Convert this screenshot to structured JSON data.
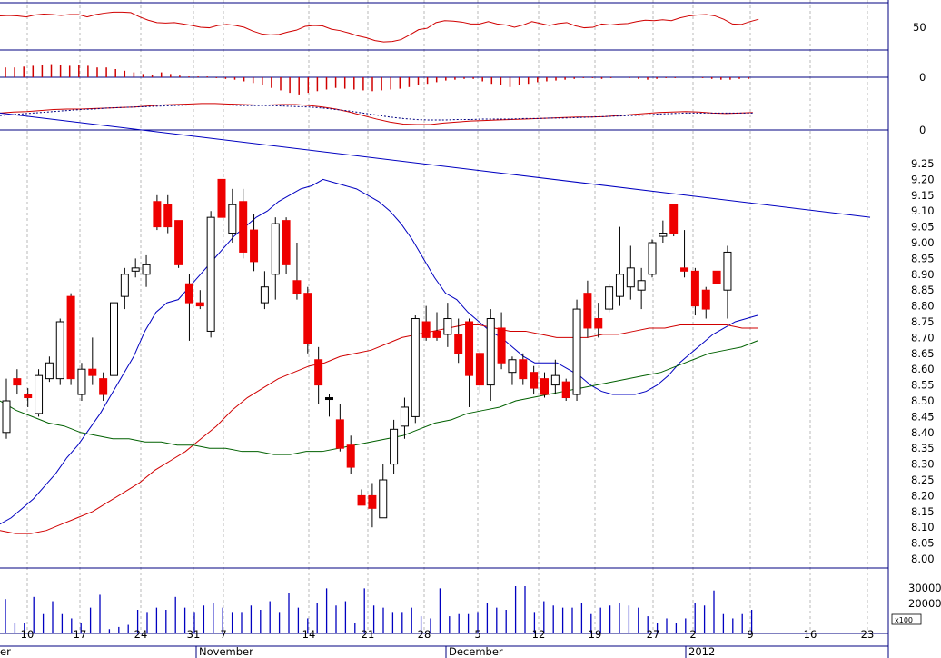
{
  "chart_data": [
    {
      "panel": "rsi",
      "type": "line",
      "y_ticks": [
        "50"
      ],
      "ylim": [
        0,
        100
      ],
      "reference_level": 50,
      "color": "#d00000",
      "values": [
        72,
        73,
        72,
        70,
        74,
        76,
        75,
        73,
        75,
        75,
        70,
        75,
        78,
        80,
        80,
        79,
        70,
        63,
        58,
        57,
        58,
        55,
        52,
        48,
        47,
        52,
        54,
        52,
        48,
        40,
        34,
        32,
        33,
        38,
        42,
        50,
        52,
        51,
        44,
        41,
        36,
        30,
        26,
        20,
        17,
        18,
        22,
        32,
        43,
        46,
        58,
        62,
        61,
        59,
        55,
        55,
        60,
        55,
        53,
        48,
        53,
        60,
        56,
        52,
        56,
        58,
        51,
        47,
        48,
        55,
        53,
        55,
        56,
        60,
        63,
        62,
        64,
        62,
        68,
        72,
        74,
        75,
        72,
        65,
        55,
        54,
        60,
        65
      ]
    },
    {
      "panel": "macd_histogram",
      "type": "bar",
      "y_ticks": [
        "0"
      ],
      "color": "#d00000",
      "values": [
        0.12,
        0.12,
        0.13,
        0.14,
        0.15,
        0.16,
        0.15,
        0.14,
        0.15,
        0.14,
        0.12,
        0.12,
        0.1,
        0.08,
        0.06,
        0.04,
        0.03,
        0.06,
        0.04,
        0.02,
        0.01,
        0.01,
        0.01,
        -0.01,
        -0.02,
        -0.03,
        -0.05,
        -0.07,
        -0.1,
        -0.13,
        -0.16,
        -0.19,
        -0.21,
        -0.19,
        -0.17,
        -0.15,
        -0.13,
        -0.14,
        -0.15,
        -0.16,
        -0.17,
        -0.16,
        -0.15,
        -0.14,
        -0.12,
        -0.1,
        -0.08,
        -0.06,
        -0.04,
        -0.03,
        -0.02,
        -0.02,
        -0.05,
        -0.08,
        -0.1,
        -0.12,
        -0.1,
        -0.08,
        -0.06,
        -0.05,
        -0.04,
        -0.03,
        -0.02,
        -0.01,
        -0.01,
        -0.02,
        -0.01,
        0.0,
        -0.01,
        -0.02,
        -0.03,
        -0.02,
        -0.01,
        -0.01,
        0.0,
        0.0,
        -0.01,
        -0.02,
        -0.03,
        -0.03,
        -0.02,
        -0.02
      ]
    },
    {
      "panel": "macd",
      "type": "line",
      "y_ticks": [
        "0"
      ],
      "series": [
        {
          "color": "#d00000",
          "values": [
            0.1,
            0.12,
            0.13,
            0.15,
            0.17,
            0.18,
            0.18,
            0.19,
            0.2,
            0.21,
            0.22,
            0.24,
            0.26,
            0.27,
            0.28,
            0.29,
            0.29,
            0.28,
            0.27,
            0.26,
            0.26,
            0.27,
            0.27,
            0.25,
            0.22,
            0.18,
            0.12,
            0.05,
            -0.02,
            -0.08,
            -0.12,
            -0.13,
            -0.13,
            -0.1,
            -0.08,
            -0.06,
            -0.05,
            -0.04,
            -0.03,
            -0.02,
            -0.01,
            0.0,
            0.01,
            0.02,
            0.02,
            0.03,
            0.05,
            0.07,
            0.09,
            0.11,
            0.12,
            0.13,
            0.12,
            0.1,
            0.09,
            0.1,
            0.11
          ]
        },
        {
          "color": "#000080",
          "dashed": true,
          "values": [
            0.05,
            0.07,
            0.09,
            0.11,
            0.13,
            0.15,
            0.17,
            0.18,
            0.2,
            0.21,
            0.22,
            0.23,
            0.24,
            0.25,
            0.26,
            0.26,
            0.26,
            0.26,
            0.25,
            0.25,
            0.25,
            0.24,
            0.23,
            0.22,
            0.2,
            0.17,
            0.14,
            0.1,
            0.06,
            0.02,
            -0.01,
            -0.03,
            -0.04,
            -0.04,
            -0.03,
            -0.03,
            -0.02,
            -0.02,
            -0.02,
            -0.01,
            -0.01,
            0.0,
            0.0,
            0.01,
            0.02,
            0.03,
            0.04,
            0.05,
            0.06,
            0.08,
            0.09,
            0.1,
            0.1,
            0.1,
            0.1,
            0.1,
            0.1
          ]
        }
      ]
    },
    {
      "panel": "price",
      "type": "candlestick",
      "ylim": [
        8.0,
        9.25
      ],
      "y_ticks": [
        "9.25",
        "9.20",
        "9.15",
        "9.10",
        "9.05",
        "9.00",
        "8.95",
        "8.90",
        "8.85",
        "8.80",
        "8.75",
        "8.70",
        "8.65",
        "8.60",
        "8.55",
        "8.50",
        "8.45",
        "8.40",
        "8.35",
        "8.30",
        "8.25",
        "8.20",
        "8.15",
        "8.10",
        "8.05",
        "8.00"
      ],
      "candles": [
        {
          "o": 8.4,
          "h": 8.57,
          "l": 8.38,
          "c": 8.5,
          "up": true
        },
        {
          "o": 8.57,
          "h": 8.6,
          "l": 8.52,
          "c": 8.55,
          "up": false
        },
        {
          "o": 8.52,
          "h": 8.54,
          "l": 8.48,
          "c": 8.51,
          "up": false
        },
        {
          "o": 8.46,
          "h": 8.6,
          "l": 8.45,
          "c": 8.58,
          "up": true
        },
        {
          "o": 8.57,
          "h": 8.64,
          "l": 8.56,
          "c": 8.62,
          "up": true
        },
        {
          "o": 8.57,
          "h": 8.76,
          "l": 8.55,
          "c": 8.75,
          "up": true
        },
        {
          "o": 8.83,
          "h": 8.84,
          "l": 8.55,
          "c": 8.57,
          "up": false
        },
        {
          "o": 8.52,
          "h": 8.62,
          "l": 8.5,
          "c": 8.6,
          "up": true
        },
        {
          "o": 8.58,
          "h": 8.7,
          "l": 8.55,
          "c": 8.6,
          "up": false
        },
        {
          "o": 8.57,
          "h": 8.59,
          "l": 8.5,
          "c": 8.52,
          "up": false
        },
        {
          "o": 8.58,
          "h": 8.81,
          "l": 8.56,
          "c": 8.81,
          "up": true
        },
        {
          "o": 8.83,
          "h": 8.92,
          "l": 8.79,
          "c": 8.9,
          "up": true
        },
        {
          "o": 8.91,
          "h": 8.95,
          "l": 8.89,
          "c": 8.92,
          "up": true
        },
        {
          "o": 8.9,
          "h": 8.96,
          "l": 8.86,
          "c": 8.93,
          "up": true
        },
        {
          "o": 9.13,
          "h": 9.15,
          "l": 9.04,
          "c": 9.05,
          "up": false
        },
        {
          "o": 9.12,
          "h": 9.15,
          "l": 9.03,
          "c": 9.05,
          "up": false
        },
        {
          "o": 9.07,
          "h": 9.07,
          "l": 8.92,
          "c": 8.93,
          "up": false
        },
        {
          "o": 8.87,
          "h": 8.9,
          "l": 8.69,
          "c": 8.81,
          "up": false
        },
        {
          "o": 8.8,
          "h": 8.85,
          "l": 8.79,
          "c": 8.81,
          "up": false
        },
        {
          "o": 8.72,
          "h": 9.1,
          "l": 8.7,
          "c": 9.08,
          "up": true
        },
        {
          "o": 9.2,
          "h": 9.2,
          "l": 9.08,
          "c": 9.08,
          "up": false
        },
        {
          "o": 9.03,
          "h": 9.17,
          "l": 9.0,
          "c": 9.12,
          "up": true
        },
        {
          "o": 9.13,
          "h": 9.17,
          "l": 8.95,
          "c": 8.97,
          "up": false
        },
        {
          "o": 9.04,
          "h": 9.09,
          "l": 8.91,
          "c": 8.94,
          "up": false
        },
        {
          "o": 8.86,
          "h": 8.91,
          "l": 8.79,
          "c": 8.81,
          "up": true
        },
        {
          "o": 8.9,
          "h": 9.08,
          "l": 8.82,
          "c": 9.06,
          "up": true
        },
        {
          "o": 9.07,
          "h": 9.08,
          "l": 8.9,
          "c": 8.93,
          "up": false
        },
        {
          "o": 8.88,
          "h": 9.0,
          "l": 8.82,
          "c": 8.84,
          "up": false
        },
        {
          "o": 8.84,
          "h": 8.86,
          "l": 8.65,
          "c": 8.68,
          "up": false
        },
        {
          "o": 8.63,
          "h": 8.67,
          "l": 8.49,
          "c": 8.55,
          "up": false
        },
        {
          "o": 8.51,
          "h": 8.52,
          "l": 8.45,
          "c": 8.51,
          "up": false
        },
        {
          "o": 8.44,
          "h": 8.49,
          "l": 8.34,
          "c": 8.35,
          "up": false
        },
        {
          "o": 8.36,
          "h": 8.39,
          "l": 8.27,
          "c": 8.29,
          "up": false
        },
        {
          "o": 8.2,
          "h": 8.22,
          "l": 8.17,
          "c": 8.17,
          "up": false
        },
        {
          "o": 8.2,
          "h": 8.24,
          "l": 8.1,
          "c": 8.16,
          "up": false
        },
        {
          "o": 8.13,
          "h": 8.3,
          "l": 8.13,
          "c": 8.25,
          "up": true
        },
        {
          "o": 8.3,
          "h": 8.44,
          "l": 8.27,
          "c": 8.41,
          "up": true
        },
        {
          "o": 8.42,
          "h": 8.51,
          "l": 8.38,
          "c": 8.48,
          "up": true
        },
        {
          "o": 8.45,
          "h": 8.77,
          "l": 8.43,
          "c": 8.76,
          "up": true
        },
        {
          "o": 8.75,
          "h": 8.8,
          "l": 8.69,
          "c": 8.7,
          "up": false
        },
        {
          "o": 8.7,
          "h": 8.78,
          "l": 8.69,
          "c": 8.72,
          "up": false
        },
        {
          "o": 8.71,
          "h": 8.81,
          "l": 8.67,
          "c": 8.76,
          "up": true
        },
        {
          "o": 8.71,
          "h": 8.76,
          "l": 8.62,
          "c": 8.65,
          "up": false
        },
        {
          "o": 8.75,
          "h": 8.76,
          "l": 8.48,
          "c": 8.58,
          "up": false
        },
        {
          "o": 8.65,
          "h": 8.66,
          "l": 8.52,
          "c": 8.55,
          "up": false
        },
        {
          "o": 8.55,
          "h": 8.79,
          "l": 8.5,
          "c": 8.76,
          "up": true
        },
        {
          "o": 8.73,
          "h": 8.78,
          "l": 8.6,
          "c": 8.62,
          "up": false
        },
        {
          "o": 8.59,
          "h": 8.64,
          "l": 8.55,
          "c": 8.63,
          "up": true
        },
        {
          "o": 8.63,
          "h": 8.65,
          "l": 8.55,
          "c": 8.57,
          "up": false
        },
        {
          "o": 8.59,
          "h": 8.61,
          "l": 8.52,
          "c": 8.54,
          "up": false
        },
        {
          "o": 8.57,
          "h": 8.59,
          "l": 8.51,
          "c": 8.52,
          "up": false
        },
        {
          "o": 8.55,
          "h": 8.63,
          "l": 8.52,
          "c": 8.58,
          "up": true
        },
        {
          "o": 8.56,
          "h": 8.57,
          "l": 8.5,
          "c": 8.51,
          "up": false
        },
        {
          "o": 8.52,
          "h": 8.82,
          "l": 8.5,
          "c": 8.79,
          "up": true
        },
        {
          "o": 8.84,
          "h": 8.88,
          "l": 8.7,
          "c": 8.73,
          "up": false
        },
        {
          "o": 8.76,
          "h": 8.81,
          "l": 8.7,
          "c": 8.73,
          "up": false
        },
        {
          "o": 8.79,
          "h": 8.87,
          "l": 8.78,
          "c": 8.86,
          "up": true
        },
        {
          "o": 8.83,
          "h": 9.05,
          "l": 8.8,
          "c": 8.9,
          "up": true
        },
        {
          "o": 8.92,
          "h": 8.99,
          "l": 8.82,
          "c": 8.86,
          "up": true
        },
        {
          "o": 8.85,
          "h": 8.92,
          "l": 8.79,
          "c": 8.88,
          "up": true
        },
        {
          "o": 8.9,
          "h": 9.01,
          "l": 8.89,
          "c": 9.0,
          "up": true
        },
        {
          "o": 9.02,
          "h": 9.07,
          "l": 9.0,
          "c": 9.03,
          "up": true
        },
        {
          "o": 9.12,
          "h": 9.12,
          "l": 9.02,
          "c": 9.03,
          "up": false
        },
        {
          "o": 8.92,
          "h": 9.04,
          "l": 8.89,
          "c": 8.91,
          "up": false
        },
        {
          "o": 8.91,
          "h": 8.92,
          "l": 8.77,
          "c": 8.8,
          "up": false
        },
        {
          "o": 8.85,
          "h": 8.86,
          "l": 8.76,
          "c": 8.79,
          "up": false
        },
        {
          "o": 8.87,
          "h": 8.91,
          "l": 8.88,
          "c": 8.91,
          "up": false
        },
        {
          "o": 8.85,
          "h": 8.99,
          "l": 8.76,
          "c": 8.97,
          "up": true
        }
      ],
      "moving_averages": [
        {
          "color": "#0000c0",
          "values": [
            8.11,
            8.13,
            8.16,
            8.19,
            8.23,
            8.27,
            8.32,
            8.36,
            8.41,
            8.46,
            8.52,
            8.58,
            8.64,
            8.72,
            8.78,
            8.81,
            8.82,
            8.86,
            8.9,
            8.94,
            8.98,
            9.02,
            9.05,
            9.08,
            9.1,
            9.13,
            9.15,
            9.17,
            9.18,
            9.2,
            9.19,
            9.18,
            9.17,
            9.15,
            9.13,
            9.1,
            9.06,
            9.01,
            8.95,
            8.89,
            8.84,
            8.82,
            8.78,
            8.75,
            8.72,
            8.7,
            8.67,
            8.64,
            8.62,
            8.62,
            8.62,
            8.6,
            8.58,
            8.55,
            8.53,
            8.52,
            8.52,
            8.52,
            8.53,
            8.55,
            8.58,
            8.62,
            8.65,
            8.68,
            8.71,
            8.73,
            8.75,
            8.76,
            8.77
          ]
        },
        {
          "color": "#d00000",
          "values": [
            8.09,
            8.08,
            8.08,
            8.09,
            8.11,
            8.13,
            8.15,
            8.18,
            8.21,
            8.24,
            8.28,
            8.31,
            8.34,
            8.38,
            8.42,
            8.47,
            8.51,
            8.54,
            8.57,
            8.59,
            8.61,
            8.62,
            8.64,
            8.65,
            8.66,
            8.68,
            8.7,
            8.71,
            8.72,
            8.73,
            8.74,
            8.74,
            8.73,
            8.72,
            8.72,
            8.71,
            8.7,
            8.7,
            8.7,
            8.71,
            8.71,
            8.72,
            8.73,
            8.73,
            8.74,
            8.74,
            8.74,
            8.74,
            8.73,
            8.73
          ]
        },
        {
          "color": "#006000",
          "values": [
            8.5,
            8.47,
            8.45,
            8.43,
            8.42,
            8.4,
            8.39,
            8.38,
            8.38,
            8.37,
            8.37,
            8.36,
            8.36,
            8.35,
            8.35,
            8.34,
            8.34,
            8.33,
            8.33,
            8.34,
            8.34,
            8.35,
            8.36,
            8.37,
            8.38,
            8.39,
            8.41,
            8.43,
            8.44,
            8.46,
            8.47,
            8.48,
            8.5,
            8.51,
            8.52,
            8.53,
            8.54,
            8.55,
            8.56,
            8.57,
            8.58,
            8.59,
            8.61,
            8.63,
            8.65,
            8.66,
            8.67,
            8.69
          ]
        }
      ],
      "trendline": {
        "color": "#0000c0",
        "from": 9.41,
        "to": 9.08
      }
    },
    {
      "panel": "volume",
      "type": "bar",
      "color": "#0000c0",
      "y_ticks": [
        "30000",
        "20000"
      ],
      "unit_label": "x100",
      "values": [
        31000,
        20000,
        20000,
        32000,
        24000,
        30000,
        24000,
        22000,
        20000,
        27000,
        33000,
        17000,
        18000,
        19000,
        26000,
        25000,
        27000,
        26000,
        32000,
        27000,
        25000,
        28000,
        29000,
        27000,
        25000,
        25000,
        28000,
        26000,
        30000,
        25000,
        34000,
        27000,
        22000,
        29000,
        36000,
        28000,
        30000,
        20000,
        36000,
        28000,
        27000,
        25000,
        25000,
        27000,
        23000,
        22000,
        36000,
        23000,
        24000,
        24000,
        25000,
        29000,
        27000,
        26000,
        37000,
        37000,
        25000,
        30000,
        28000,
        27000,
        27000,
        29000,
        24000,
        27000,
        28000,
        29000,
        28000,
        27000,
        23000,
        20000,
        22000,
        20000,
        22000,
        29000,
        28000,
        35000,
        24000,
        22000,
        24000,
        26000
      ]
    }
  ],
  "x_axis": {
    "day_labels": [
      "10",
      "17",
      "24",
      "31",
      "7",
      "14",
      "21",
      "28",
      "5",
      "12",
      "19",
      "27",
      "2",
      "9",
      "16",
      "23"
    ],
    "months": [
      "er",
      "November",
      "December",
      "2012"
    ]
  }
}
